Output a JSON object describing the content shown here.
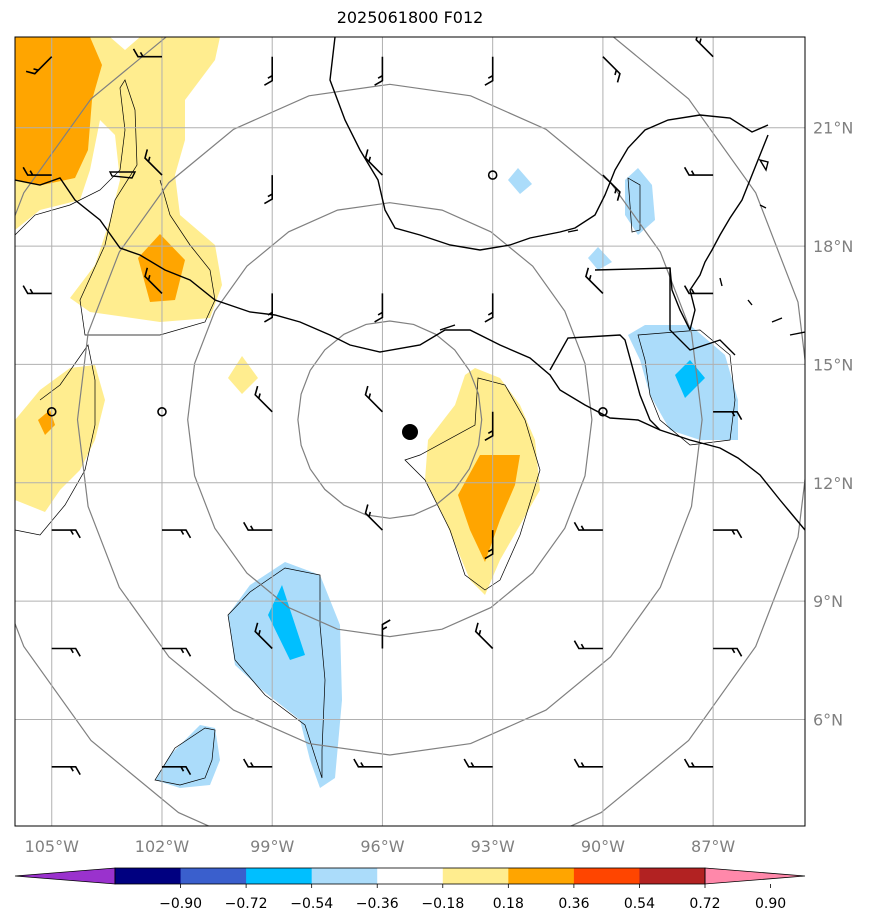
{
  "title": "2025061800 F012",
  "map": {
    "lon_range": [
      -106,
      -84.5
    ],
    "lat_range": [
      3.3,
      23.3
    ],
    "lon_ticks": [
      {
        "value": -105,
        "label": "105°W"
      },
      {
        "value": -102,
        "label": "102°W"
      },
      {
        "value": -99,
        "label": "99°W"
      },
      {
        "value": -96,
        "label": "96°W"
      },
      {
        "value": -93,
        "label": "93°W"
      },
      {
        "value": -90,
        "label": "90°W"
      },
      {
        "value": -87,
        "label": "87°W"
      }
    ],
    "lat_ticks": [
      {
        "value": 21,
        "label": "21°N"
      },
      {
        "value": 18,
        "label": "18°N"
      },
      {
        "value": 15,
        "label": "15°N"
      },
      {
        "value": 12,
        "label": "12°N"
      },
      {
        "value": 9,
        "label": "9°N"
      },
      {
        "value": 6,
        "label": "6°N"
      }
    ],
    "center": {
      "lon": -95.8,
      "lat": 13.6
    },
    "range_rings_deg": [
      2.5,
      5.5,
      8.5,
      11.5
    ],
    "colors": {
      "neg_light": "#abdcfa",
      "neg_mid": "#00bfff",
      "pos_light": "#ffed8f",
      "pos_mid": "#ffa500",
      "grid": "#b0b0b0",
      "ring": "#808080",
      "coast": "#000000"
    }
  },
  "colorbar": {
    "ticks": [
      "−0.90",
      "−0.72",
      "−0.54",
      "−0.36",
      "−0.18",
      "0.18",
      "0.36",
      "0.54",
      "0.72",
      "0.90"
    ],
    "colors": [
      "#9a32cd",
      "#000080",
      "#3a5fcd",
      "#00bfff",
      "#abdcfa",
      "#ffffff",
      "#ffed8f",
      "#ffa500",
      "#ff4500",
      "#b22222",
      "#ff88aa"
    ]
  }
}
